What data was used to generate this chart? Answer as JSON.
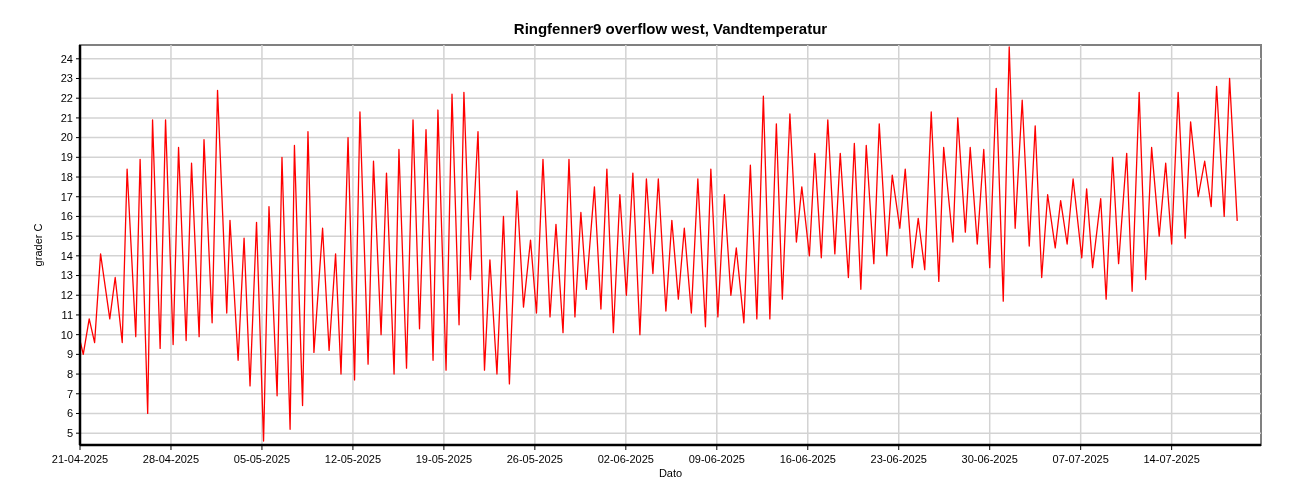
{
  "chart_data": {
    "type": "line",
    "title": "Ringfenner9 overflow west, Vandtemperatur",
    "xlabel": "Dato",
    "ylabel": "grader C",
    "grid": true,
    "marker": "none",
    "line_style": "solid",
    "xlim": [
      "2025-04-21T00:00",
      "2025-07-20T21:00"
    ],
    "xticks": [
      {
        "value": "2025-04-21",
        "label": "21-04-2025"
      },
      {
        "value": "2025-04-28",
        "label": "28-04-2025"
      },
      {
        "value": "2025-05-05",
        "label": "05-05-2025"
      },
      {
        "value": "2025-05-12",
        "label": "12-05-2025"
      },
      {
        "value": "2025-05-19",
        "label": "19-05-2025"
      },
      {
        "value": "2025-05-26",
        "label": "26-05-2025"
      },
      {
        "value": "2025-06-02",
        "label": "02-06-2025"
      },
      {
        "value": "2025-06-09",
        "label": "09-06-2025"
      },
      {
        "value": "2025-06-16",
        "label": "16-06-2025"
      },
      {
        "value": "2025-06-23",
        "label": "23-06-2025"
      },
      {
        "value": "2025-06-30",
        "label": "30-06-2025"
      },
      {
        "value": "2025-07-07",
        "label": "07-07-2025"
      },
      {
        "value": "2025-07-14",
        "label": "14-07-2025"
      }
    ],
    "ylim": [
      4.4,
      24.7
    ],
    "yticks": [
      5,
      6,
      7,
      8,
      9,
      10,
      11,
      12,
      13,
      14,
      15,
      16,
      17,
      18,
      19,
      20,
      21,
      22,
      23,
      24
    ],
    "series": [
      {
        "color": "#ff0000",
        "x": [
          "2025-04-21T01:00",
          "2025-04-21T06:00",
          "2025-04-21T17:00",
          "2025-04-22T03:00",
          "2025-04-22T14:00",
          "2025-04-23T07:00",
          "2025-04-23T17:00",
          "2025-04-24T06:00",
          "2025-04-24T15:00",
          "2025-04-25T07:00",
          "2025-04-25T15:00",
          "2025-04-26T05:00",
          "2025-04-26T14:00",
          "2025-04-27T04:00",
          "2025-04-27T14:00",
          "2025-04-28T04:00",
          "2025-04-28T14:00",
          "2025-04-29T04:00",
          "2025-04-29T14:00",
          "2025-04-30T04:00",
          "2025-04-30T13:00",
          "2025-05-01T04:00",
          "2025-05-01T14:00",
          "2025-05-02T07:00",
          "2025-05-02T13:00",
          "2025-05-03T04:00",
          "2025-05-03T15:00",
          "2025-05-04T02:00",
          "2025-05-04T14:00",
          "2025-05-05T03:00",
          "2025-05-05T13:00",
          "2025-05-06T04:00",
          "2025-05-06T13:00",
          "2025-05-07T04:00",
          "2025-05-07T12:00",
          "2025-05-08T03:00",
          "2025-05-08T13:00",
          "2025-05-09T00:00",
          "2025-05-09T16:00",
          "2025-05-10T04:00",
          "2025-05-10T16:00",
          "2025-05-11T02:00",
          "2025-05-11T15:00",
          "2025-05-12T03:00",
          "2025-05-12T13:00",
          "2025-05-13T04:00",
          "2025-05-13T14:00",
          "2025-05-14T04:00",
          "2025-05-14T14:00",
          "2025-05-15T04:00",
          "2025-05-15T13:00",
          "2025-05-16T03:00",
          "2025-05-16T15:00",
          "2025-05-17T03:00",
          "2025-05-17T15:00",
          "2025-05-18T04:00",
          "2025-05-18T13:00",
          "2025-05-19T04:00",
          "2025-05-19T15:00",
          "2025-05-20T04:00",
          "2025-05-20T13:00",
          "2025-05-21T01:00",
          "2025-05-21T15:00",
          "2025-05-22T03:00",
          "2025-05-22T13:00",
          "2025-05-23T02:00",
          "2025-05-23T14:00",
          "2025-05-24T01:00",
          "2025-05-24T15:00",
          "2025-05-25T03:00",
          "2025-05-25T16:00",
          "2025-05-26T03:00",
          "2025-05-26T15:00",
          "2025-05-27T04:00",
          "2025-05-27T15:00",
          "2025-05-28T04:00",
          "2025-05-28T15:00",
          "2025-05-29T02:00",
          "2025-05-29T13:00",
          "2025-05-29T23:00",
          "2025-05-30T14:00",
          "2025-05-31T02:00",
          "2025-05-31T13:00",
          "2025-06-01T01:00",
          "2025-06-01T13:00",
          "2025-06-02T01:00",
          "2025-06-02T13:00",
          "2025-06-03T02:00",
          "2025-06-03T14:00",
          "2025-06-04T02:00",
          "2025-06-04T12:00",
          "2025-06-05T02:00",
          "2025-06-05T13:00",
          "2025-06-06T01:00",
          "2025-06-06T12:00",
          "2025-06-07T01:00",
          "2025-06-07T13:00",
          "2025-06-08T03:00",
          "2025-06-08T13:00",
          "2025-06-09T02:00",
          "2025-06-09T14:00",
          "2025-06-10T02:00",
          "2025-06-10T12:00",
          "2025-06-11T02:00",
          "2025-06-11T14:00",
          "2025-06-12T02:00",
          "2025-06-12T14:00",
          "2025-06-13T02:00",
          "2025-06-13T14:00",
          "2025-06-14T01:00",
          "2025-06-14T15:00",
          "2025-06-15T03:00",
          "2025-06-15T13:00",
          "2025-06-16T03:00",
          "2025-06-16T13:00",
          "2025-06-17T01:00",
          "2025-06-17T13:00",
          "2025-06-18T02:00",
          "2025-06-18T12:00",
          "2025-06-19T03:00",
          "2025-06-19T14:00",
          "2025-06-20T02:00",
          "2025-06-20T12:00",
          "2025-06-21T02:00",
          "2025-06-21T12:00",
          "2025-06-22T02:00",
          "2025-06-22T12:00",
          "2025-06-23T02:00",
          "2025-06-23T12:00",
          "2025-06-24T01:00",
          "2025-06-24T12:00",
          "2025-06-25T00:00",
          "2025-06-25T12:00",
          "2025-06-26T02:00",
          "2025-06-26T11:00",
          "2025-06-27T04:00",
          "2025-06-27T13:00",
          "2025-06-28T03:00",
          "2025-06-28T12:00",
          "2025-06-29T01:00",
          "2025-06-29T13:00",
          "2025-06-30T00:00",
          "2025-06-30T12:00",
          "2025-07-01T01:00",
          "2025-07-01T12:00",
          "2025-07-01T23:00",
          "2025-07-02T12:00",
          "2025-07-03T01:00",
          "2025-07-03T12:00",
          "2025-07-04T00:00",
          "2025-07-04T11:00",
          "2025-07-05T01:00",
          "2025-07-05T11:00",
          "2025-07-05T23:00",
          "2025-07-06T10:00",
          "2025-07-07T02:00",
          "2025-07-07T11:00",
          "2025-07-07T22:00",
          "2025-07-08T13:00",
          "2025-07-08T23:00",
          "2025-07-09T11:00",
          "2025-07-09T22:00",
          "2025-07-10T13:00",
          "2025-07-10T23:00",
          "2025-07-11T12:00",
          "2025-07-12T00:00",
          "2025-07-12T11:00",
          "2025-07-13T01:00",
          "2025-07-13T13:00",
          "2025-07-14T00:00",
          "2025-07-14T12:00",
          "2025-07-15T01:00",
          "2025-07-15T11:00",
          "2025-07-16T01:00",
          "2025-07-16T13:00",
          "2025-07-17T01:00",
          "2025-07-17T11:00",
          "2025-07-18T01:00",
          "2025-07-18T11:00",
          "2025-07-19T01:00"
        ],
        "values": [
          9.6,
          9.0,
          10.8,
          9.6,
          14.1,
          10.8,
          12.9,
          9.6,
          18.4,
          9.9,
          18.9,
          6.0,
          20.9,
          9.3,
          20.9,
          9.5,
          19.5,
          9.7,
          18.7,
          9.9,
          19.9,
          10.6,
          22.4,
          11.1,
          15.8,
          8.7,
          14.9,
          7.4,
          15.7,
          4.6,
          16.5,
          6.9,
          19.0,
          5.2,
          19.6,
          6.4,
          20.3,
          9.1,
          15.4,
          9.2,
          14.1,
          8.0,
          20.0,
          7.7,
          21.3,
          8.5,
          18.8,
          10.0,
          18.2,
          8.0,
          19.4,
          8.3,
          20.9,
          10.3,
          20.4,
          8.7,
          21.4,
          8.2,
          22.2,
          10.5,
          22.3,
          12.8,
          20.3,
          8.2,
          13.8,
          8.0,
          16.0,
          7.5,
          17.3,
          11.4,
          14.8,
          11.1,
          18.9,
          10.9,
          15.6,
          10.1,
          18.9,
          10.9,
          16.2,
          12.3,
          17.5,
          11.3,
          18.4,
          10.1,
          17.1,
          12.0,
          18.2,
          10.0,
          17.9,
          13.1,
          17.9,
          11.2,
          15.8,
          11.8,
          15.4,
          11.1,
          17.9,
          10.4,
          18.4,
          10.9,
          17.1,
          12.0,
          14.4,
          10.6,
          18.6,
          10.8,
          22.1,
          10.8,
          20.7,
          11.8,
          21.2,
          14.7,
          17.5,
          14.0,
          19.2,
          13.9,
          20.9,
          14.1,
          19.2,
          12.9,
          19.7,
          12.3,
          19.6,
          13.6,
          20.7,
          14.0,
          18.1,
          15.4,
          18.4,
          13.4,
          15.9,
          13.3,
          21.3,
          12.7,
          19.5,
          14.7,
          21.0,
          15.2,
          19.5,
          14.6,
          19.4,
          13.4,
          22.5,
          11.7,
          24.6,
          15.4,
          21.9,
          14.5,
          20.6,
          12.9,
          17.1,
          14.4,
          16.8,
          14.6,
          17.9,
          13.9,
          17.4,
          13.4,
          16.9,
          11.8,
          19.0,
          13.6,
          19.2,
          12.2,
          22.3,
          12.8,
          19.5,
          15.0,
          18.7,
          14.6,
          22.3,
          14.9,
          20.8,
          17.0,
          18.8,
          16.5,
          22.6,
          16.0,
          23.0,
          15.8
        ]
      }
    ]
  }
}
